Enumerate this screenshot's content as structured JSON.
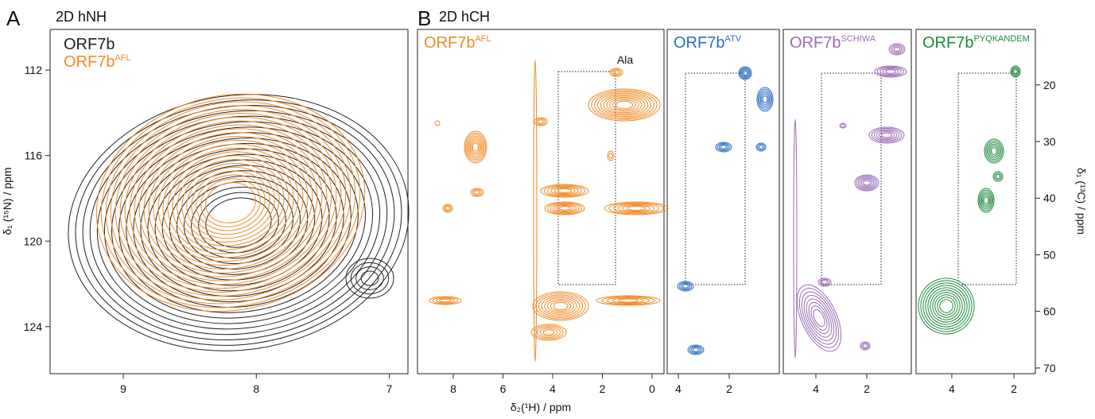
{
  "panel_a": {
    "letter": "A",
    "title": "2D hNH",
    "labels": [
      {
        "base": "ORF7b",
        "color": "#222222"
      },
      {
        "base": "ORF7b",
        "sup": "AFL",
        "color": "#f08a24"
      }
    ],
    "ylabel": "δ₁ (¹⁵N) / ppm",
    "xlim": [
      9.55,
      6.86
    ],
    "xticks": [
      9,
      8,
      7
    ],
    "ylim": [
      110.1,
      126.2
    ],
    "yticks": [
      112,
      116,
      120,
      124
    ]
  },
  "panel_b": {
    "letter": "B",
    "title": "2D hCH",
    "xlabel": "δ₂(¹H) / ppm",
    "ylabel": "δ₁ (¹³C) / ppm",
    "ylim": [
      10.2,
      71
    ],
    "yticks": [
      20,
      30,
      40,
      50,
      60,
      70
    ],
    "spectra": [
      {
        "label": {
          "base": "ORF7b",
          "sup": "AFL"
        },
        "color": "#f08a24",
        "xlim": [
          9.44,
          -0.48
        ],
        "xticks": [
          8,
          6,
          4,
          2,
          0
        ],
        "annotation": "Ala"
      },
      {
        "label": {
          "base": "ORF7b",
          "sup": "ATV"
        },
        "color": "#2a6ec4",
        "xlim": [
          4.44,
          0.03
        ],
        "xticks": [
          4,
          2
        ]
      },
      {
        "label": {
          "base": "ORF7b",
          "sup": "SCHIWA"
        },
        "color": "#9b6bb5",
        "xlim": [
          5.28,
          0.25
        ],
        "xticks": [
          4,
          2
        ]
      },
      {
        "label": {
          "base": "ORF7b",
          "sup": "PYQKANDEM"
        },
        "color": "#1f8a3c",
        "xlim": [
          5.15,
          1.31
        ],
        "xticks": [
          4,
          2
        ]
      }
    ]
  }
}
